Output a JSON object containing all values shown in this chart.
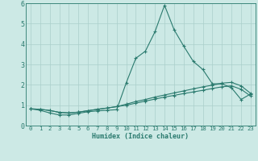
{
  "xlabel": "Humidex (Indice chaleur)",
  "x": [
    0,
    1,
    2,
    3,
    4,
    5,
    6,
    7,
    8,
    9,
    10,
    11,
    12,
    13,
    14,
    15,
    16,
    17,
    18,
    19,
    20,
    21,
    22,
    23
  ],
  "line1": [
    0.82,
    0.75,
    0.62,
    0.52,
    0.52,
    0.6,
    0.68,
    0.72,
    0.75,
    0.78,
    2.1,
    3.3,
    3.65,
    4.6,
    5.9,
    4.7,
    3.9,
    3.15,
    2.75,
    2.05,
    2.05,
    1.85,
    1.28,
    1.55
  ],
  "line2": [
    0.82,
    0.8,
    0.74,
    0.65,
    0.62,
    0.66,
    0.73,
    0.8,
    0.86,
    0.93,
    1.05,
    1.18,
    1.28,
    1.4,
    1.5,
    1.6,
    1.7,
    1.8,
    1.9,
    1.98,
    2.08,
    2.12,
    1.95,
    1.58
  ],
  "line3": [
    0.82,
    0.8,
    0.74,
    0.65,
    0.62,
    0.66,
    0.73,
    0.8,
    0.86,
    0.93,
    1.0,
    1.1,
    1.2,
    1.3,
    1.4,
    1.48,
    1.57,
    1.65,
    1.73,
    1.82,
    1.9,
    1.95,
    1.78,
    1.45
  ],
  "line_color": "#2a7a6e",
  "bg_color": "#cce9e5",
  "grid_color": "#aacfca",
  "ylim": [
    0,
    6
  ],
  "xlim": [
    -0.5,
    23.5
  ],
  "yticks": [
    0,
    1,
    2,
    3,
    4,
    5,
    6
  ],
  "xticks": [
    0,
    1,
    2,
    3,
    4,
    5,
    6,
    7,
    8,
    9,
    10,
    11,
    12,
    13,
    14,
    15,
    16,
    17,
    18,
    19,
    20,
    21,
    22,
    23
  ]
}
